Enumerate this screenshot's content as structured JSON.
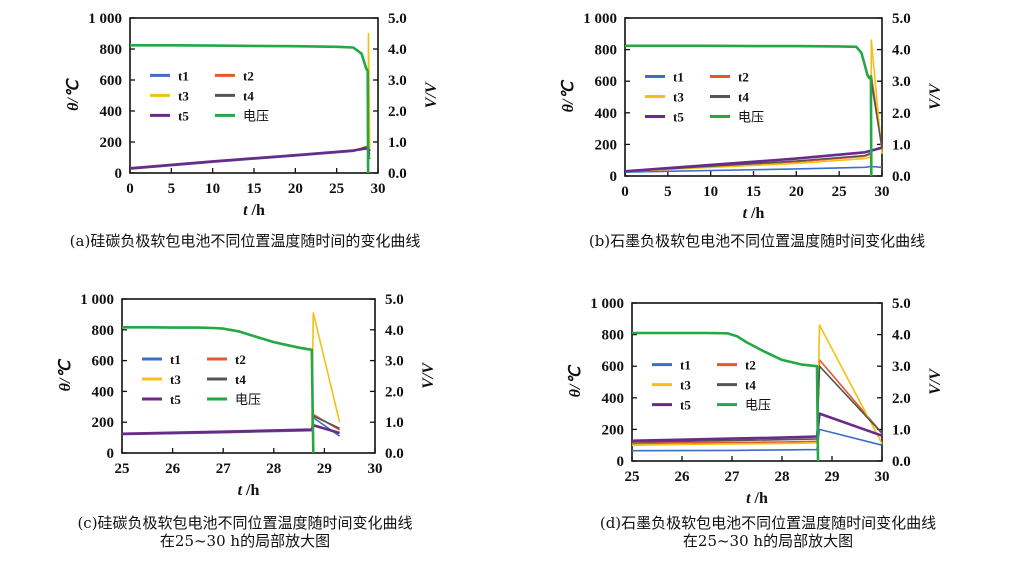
{
  "chart_data": [
    {
      "id": "a",
      "type": "line",
      "caption": [
        "(a)硅碳负极软包电池不同位置温度随时间的变化曲线"
      ],
      "xlabel_var": "t",
      "xlabel_unit": " /h",
      "ylabel": "θ/℃",
      "y2label": "V/V",
      "xlim": [
        0,
        30
      ],
      "ylim": [
        0,
        1000
      ],
      "y2lim": [
        0,
        5
      ],
      "xticks": [
        "0",
        "5",
        "10",
        "15",
        "20",
        "25",
        "30"
      ],
      "yticks": [
        "0",
        "200",
        "400",
        "600",
        "800",
        "1 000"
      ],
      "y2ticks": [
        "0.0",
        "1.0",
        "2.0",
        "3.0",
        "4.0",
        "5.0"
      ],
      "series": [
        {
          "name": "t1",
          "color": "#3a6fc4",
          "axis": "left",
          "x": [
            0,
            10,
            20,
            27,
            28.8,
            28.85,
            29.0
          ],
          "y": [
            25,
            70,
            110,
            140,
            165,
            130,
            90
          ]
        },
        {
          "name": "t2",
          "color": "#e5582a",
          "axis": "left",
          "x": [
            0,
            10,
            20,
            27,
            28.8,
            28.85,
            29.0
          ],
          "y": [
            28,
            72,
            112,
            142,
            170,
            140,
            105
          ]
        },
        {
          "name": "t3",
          "color": "#f2c114",
          "axis": "left",
          "x": [
            0,
            10,
            20,
            27,
            28.8,
            28.85,
            29.0
          ],
          "y": [
            30,
            75,
            115,
            145,
            175,
            900,
            160
          ]
        },
        {
          "name": "t4",
          "color": "#555555",
          "axis": "left",
          "x": [
            0,
            10,
            20,
            27,
            28.8,
            28.85,
            29.0
          ],
          "y": [
            28,
            72,
            112,
            142,
            172,
            150,
            120
          ]
        },
        {
          "name": "t5",
          "color": "#6a2a8a",
          "axis": "left",
          "x": [
            0,
            10,
            20,
            27,
            28.8,
            29.0
          ],
          "y": [
            30,
            75,
            115,
            145,
            160,
            140
          ]
        },
        {
          "name": "电压",
          "color": "#23a843",
          "axis": "right",
          "x": [
            0,
            5,
            10,
            15,
            20,
            25,
            27,
            28,
            28.6,
            28.75,
            28.8
          ],
          "y": [
            4.12,
            4.12,
            4.11,
            4.1,
            4.09,
            4.07,
            4.05,
            3.85,
            3.35,
            3.3,
            0.0
          ]
        }
      ],
      "legend_position": "upper-left"
    },
    {
      "id": "b",
      "type": "line",
      "caption": [
        "(b)石墨负极软包电池不同位置温度随时间变化曲线"
      ],
      "xlabel_var": "t",
      "xlabel_unit": " /h",
      "ylabel": "θ/℃",
      "y2label": "V/V",
      "xlim": [
        0,
        30
      ],
      "ylim": [
        0,
        1000
      ],
      "y2lim": [
        0,
        5
      ],
      "xticks": [
        "0",
        "5",
        "10",
        "15",
        "20",
        "25",
        "30"
      ],
      "yticks": [
        "0",
        "200",
        "400",
        "600",
        "800",
        "1 000"
      ],
      "y2ticks": [
        "0.0",
        "1.0",
        "2.0",
        "3.0",
        "4.0",
        "5.0"
      ],
      "series": [
        {
          "name": "t1",
          "color": "#3a6fc4",
          "axis": "left",
          "x": [
            0,
            10,
            20,
            28,
            28.7,
            30
          ],
          "y": [
            25,
            35,
            45,
            55,
            60,
            55
          ]
        },
        {
          "name": "t2",
          "color": "#e5582a",
          "axis": "left",
          "x": [
            0,
            10,
            20,
            28,
            28.7,
            28.75,
            30
          ],
          "y": [
            30,
            60,
            90,
            125,
            140,
            640,
            170
          ]
        },
        {
          "name": "t3",
          "color": "#f2c114",
          "axis": "left",
          "x": [
            0,
            10,
            20,
            28,
            28.7,
            28.75,
            30
          ],
          "y": [
            28,
            55,
            80,
            110,
            120,
            860,
            140
          ]
        },
        {
          "name": "t4",
          "color": "#555555",
          "axis": "left",
          "x": [
            0,
            10,
            20,
            28,
            28.7,
            28.75,
            30
          ],
          "y": [
            30,
            62,
            95,
            130,
            145,
            600,
            175
          ]
        },
        {
          "name": "t5",
          "color": "#6a2a8a",
          "axis": "left",
          "x": [
            0,
            10,
            20,
            28,
            28.7,
            30
          ],
          "y": [
            30,
            70,
            110,
            150,
            160,
            180
          ]
        },
        {
          "name": "电压",
          "color": "#23a843",
          "axis": "right",
          "x": [
            0,
            5,
            10,
            15,
            20,
            25,
            27,
            27.6,
            28,
            28.3,
            28.5,
            28.7,
            28.75
          ],
          "y": [
            4.12,
            4.12,
            4.12,
            4.11,
            4.11,
            4.1,
            4.09,
            3.9,
            3.5,
            3.2,
            3.1,
            3.15,
            0.0
          ]
        }
      ],
      "legend_position": "upper-left"
    },
    {
      "id": "c",
      "type": "line",
      "caption": [
        "(c)硅碳负极软包电池不同位置温度随时间变化曲线",
        "在25~30 h的局部放大图"
      ],
      "xlabel_var": "t",
      "xlabel_unit": " /h",
      "ylabel": "θ/℃",
      "y2label": "V/V",
      "xlim": [
        25,
        30
      ],
      "ylim": [
        0,
        1000
      ],
      "y2lim": [
        0,
        5
      ],
      "xticks": [
        "25",
        "26",
        "27",
        "28",
        "29",
        "30"
      ],
      "yticks": [
        "0",
        "200",
        "400",
        "600",
        "800",
        "1 000"
      ],
      "y2ticks": [
        "0.0",
        "1.0",
        "2.0",
        "3.0",
        "4.0",
        "5.0"
      ],
      "series": [
        {
          "name": "t1",
          "color": "#3a6fc4",
          "axis": "left",
          "x": [
            25,
            27,
            28.75,
            28.78,
            29.3
          ],
          "y": [
            120,
            132,
            145,
            230,
            110
          ]
        },
        {
          "name": "t2",
          "color": "#e5582a",
          "axis": "left",
          "x": [
            25,
            27,
            28.75,
            28.78,
            29.3
          ],
          "y": [
            122,
            134,
            148,
            250,
            150
          ]
        },
        {
          "name": "t3",
          "color": "#f2c114",
          "axis": "left",
          "x": [
            25,
            27,
            28.75,
            28.78,
            29.3
          ],
          "y": [
            124,
            136,
            150,
            910,
            200
          ]
        },
        {
          "name": "t4",
          "color": "#555555",
          "axis": "left",
          "x": [
            25,
            27,
            28.75,
            28.78,
            29.3
          ],
          "y": [
            122,
            134,
            148,
            240,
            160
          ]
        },
        {
          "name": "t5",
          "color": "#6a2a8a",
          "axis": "left",
          "x": [
            25,
            27,
            28.75,
            28.78,
            29.3
          ],
          "y": [
            125,
            138,
            152,
            180,
            130
          ]
        },
        {
          "name": "电压",
          "color": "#23a843",
          "axis": "right",
          "x": [
            25,
            25.5,
            26,
            26.5,
            26.8,
            27,
            27.3,
            27.6,
            28,
            28.5,
            28.75,
            28.78
          ],
          "y": [
            4.08,
            4.08,
            4.07,
            4.07,
            4.06,
            4.04,
            3.95,
            3.8,
            3.6,
            3.42,
            3.35,
            0.0
          ]
        }
      ],
      "legend_position": "middle-left"
    },
    {
      "id": "d",
      "type": "line",
      "caption": [
        "(d)石墨负极软包电池不同位置温度随时间变化曲线",
        "在25~30 h的局部放大图"
      ],
      "xlabel_var": "t",
      "xlabel_unit": " /h",
      "ylabel": "θ/℃",
      "y2label": "V/V",
      "xlim": [
        25,
        30
      ],
      "ylim": [
        0,
        1000
      ],
      "y2lim": [
        0,
        5
      ],
      "xticks": [
        "25",
        "26",
        "27",
        "28",
        "29",
        "30"
      ],
      "yticks": [
        "0",
        "200",
        "400",
        "600",
        "800",
        "1 000"
      ],
      "y2ticks": [
        "0.0",
        "1.0",
        "2.0",
        "3.0",
        "4.0",
        "5.0"
      ],
      "series": [
        {
          "name": "t1",
          "color": "#3a6fc4",
          "axis": "left",
          "x": [
            25,
            26,
            27,
            28,
            28.7,
            28.75,
            30
          ],
          "y": [
            65,
            66,
            67,
            70,
            72,
            200,
            100
          ]
        },
        {
          "name": "t2",
          "color": "#e5582a",
          "axis": "left",
          "x": [
            25,
            26,
            27,
            28,
            28.7,
            28.75,
            30
          ],
          "y": [
            110,
            115,
            118,
            120,
            125,
            640,
            175
          ]
        },
        {
          "name": "t3",
          "color": "#f2c114",
          "axis": "left",
          "x": [
            25,
            26,
            27,
            28,
            28.7,
            28.75,
            30
          ],
          "y": [
            100,
            105,
            108,
            110,
            115,
            860,
            110
          ]
        },
        {
          "name": "t4",
          "color": "#555555",
          "axis": "left",
          "x": [
            25,
            26,
            27,
            28,
            28.7,
            28.75,
            30
          ],
          "y": [
            120,
            125,
            130,
            135,
            140,
            600,
            175
          ]
        },
        {
          "name": "t5",
          "color": "#6a2a8a",
          "axis": "left",
          "x": [
            25,
            26,
            27,
            28,
            28.7,
            28.75,
            30
          ],
          "y": [
            128,
            135,
            142,
            148,
            155,
            300,
            160
          ]
        },
        {
          "name": "电压",
          "color": "#23a843",
          "axis": "right",
          "x": [
            25,
            25.5,
            26,
            26.5,
            26.9,
            27.1,
            27.3,
            27.6,
            28,
            28.4,
            28.7,
            28.72
          ],
          "y": [
            4.05,
            4.05,
            4.05,
            4.05,
            4.04,
            3.95,
            3.75,
            3.5,
            3.2,
            3.05,
            3.0,
            0.0
          ]
        }
      ],
      "legend_position": "middle-left"
    }
  ]
}
